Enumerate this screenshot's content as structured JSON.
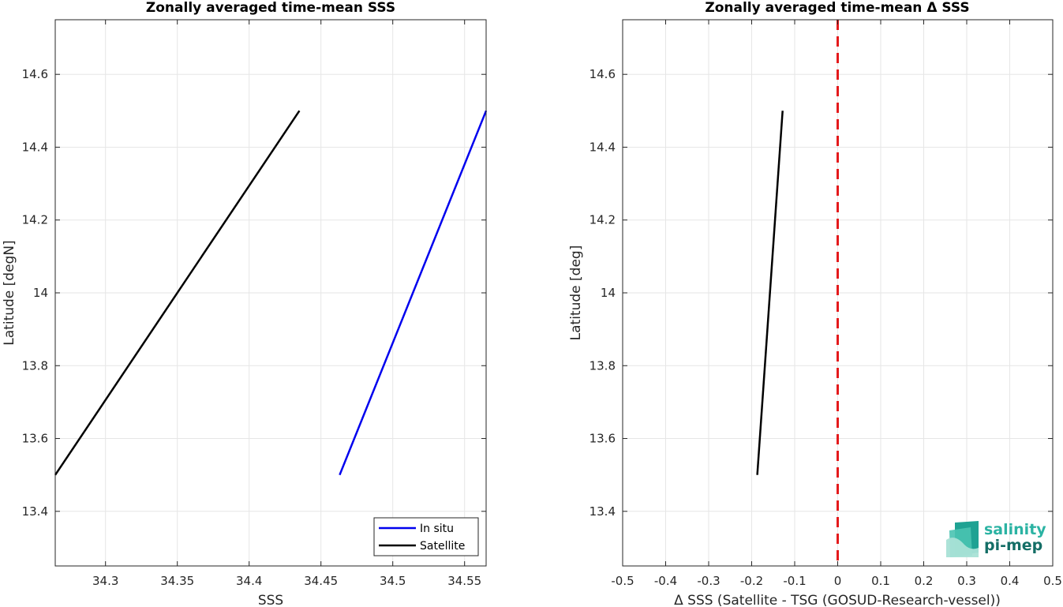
{
  "chart_data": [
    {
      "type": "line",
      "title": "Zonally averaged time-mean SSS",
      "xlabel": "SSS",
      "ylabel": "Latitude [degN]",
      "xlim": [
        34.265,
        34.565
      ],
      "ylim": [
        13.25,
        14.75
      ],
      "xticks": [
        "34.3",
        "34.35",
        "34.4",
        "34.45",
        "34.5",
        "34.55"
      ],
      "xtick_values": [
        34.3,
        34.35,
        34.4,
        34.45,
        34.5,
        34.55
      ],
      "yticks": [
        "13.4",
        "13.6",
        "13.8",
        "14",
        "14.2",
        "14.4",
        "14.6"
      ],
      "ytick_values": [
        13.4,
        13.6,
        13.8,
        14.0,
        14.2,
        14.4,
        14.6
      ],
      "grid": true,
      "legend_position": "bottom-right",
      "series": [
        {
          "name": "In situ",
          "color": "#0000ee",
          "x": [
            34.463,
            34.565
          ],
          "y": [
            13.5,
            14.5
          ]
        },
        {
          "name": "Satellite",
          "color": "#000000",
          "x": [
            34.265,
            34.435
          ],
          "y": [
            13.5,
            14.5
          ]
        }
      ]
    },
    {
      "type": "line",
      "title": "Zonally averaged time-mean Δ SSS",
      "xlabel": "Δ SSS (Satellite - TSG (GOSUD-Research-vessel))",
      "ylabel": "Latitude [deg]",
      "xlim": [
        -0.5,
        0.5
      ],
      "ylim": [
        13.25,
        14.75
      ],
      "xticks": [
        "-0.5",
        "-0.4",
        "-0.3",
        "-0.2",
        "-0.1",
        "0",
        "0.1",
        "0.2",
        "0.3",
        "0.4",
        "0.5"
      ],
      "xtick_values": [
        -0.5,
        -0.4,
        -0.3,
        -0.2,
        -0.1,
        0,
        0.1,
        0.2,
        0.3,
        0.4,
        0.5
      ],
      "yticks": [
        "13.4",
        "13.6",
        "13.8",
        "14",
        "14.2",
        "14.4",
        "14.6"
      ],
      "ytick_values": [
        13.4,
        13.6,
        13.8,
        14.0,
        14.2,
        14.4,
        14.6
      ],
      "grid": true,
      "series": [
        {
          "color": "#000000",
          "x": [
            -0.187,
            -0.128
          ],
          "y": [
            13.5,
            14.5
          ]
        }
      ],
      "reference_line": {
        "x": 0,
        "color": "#e41a1c",
        "style": "dashed"
      }
    }
  ],
  "logo": {
    "line1": "salinity",
    "line2": "pi-mep"
  }
}
